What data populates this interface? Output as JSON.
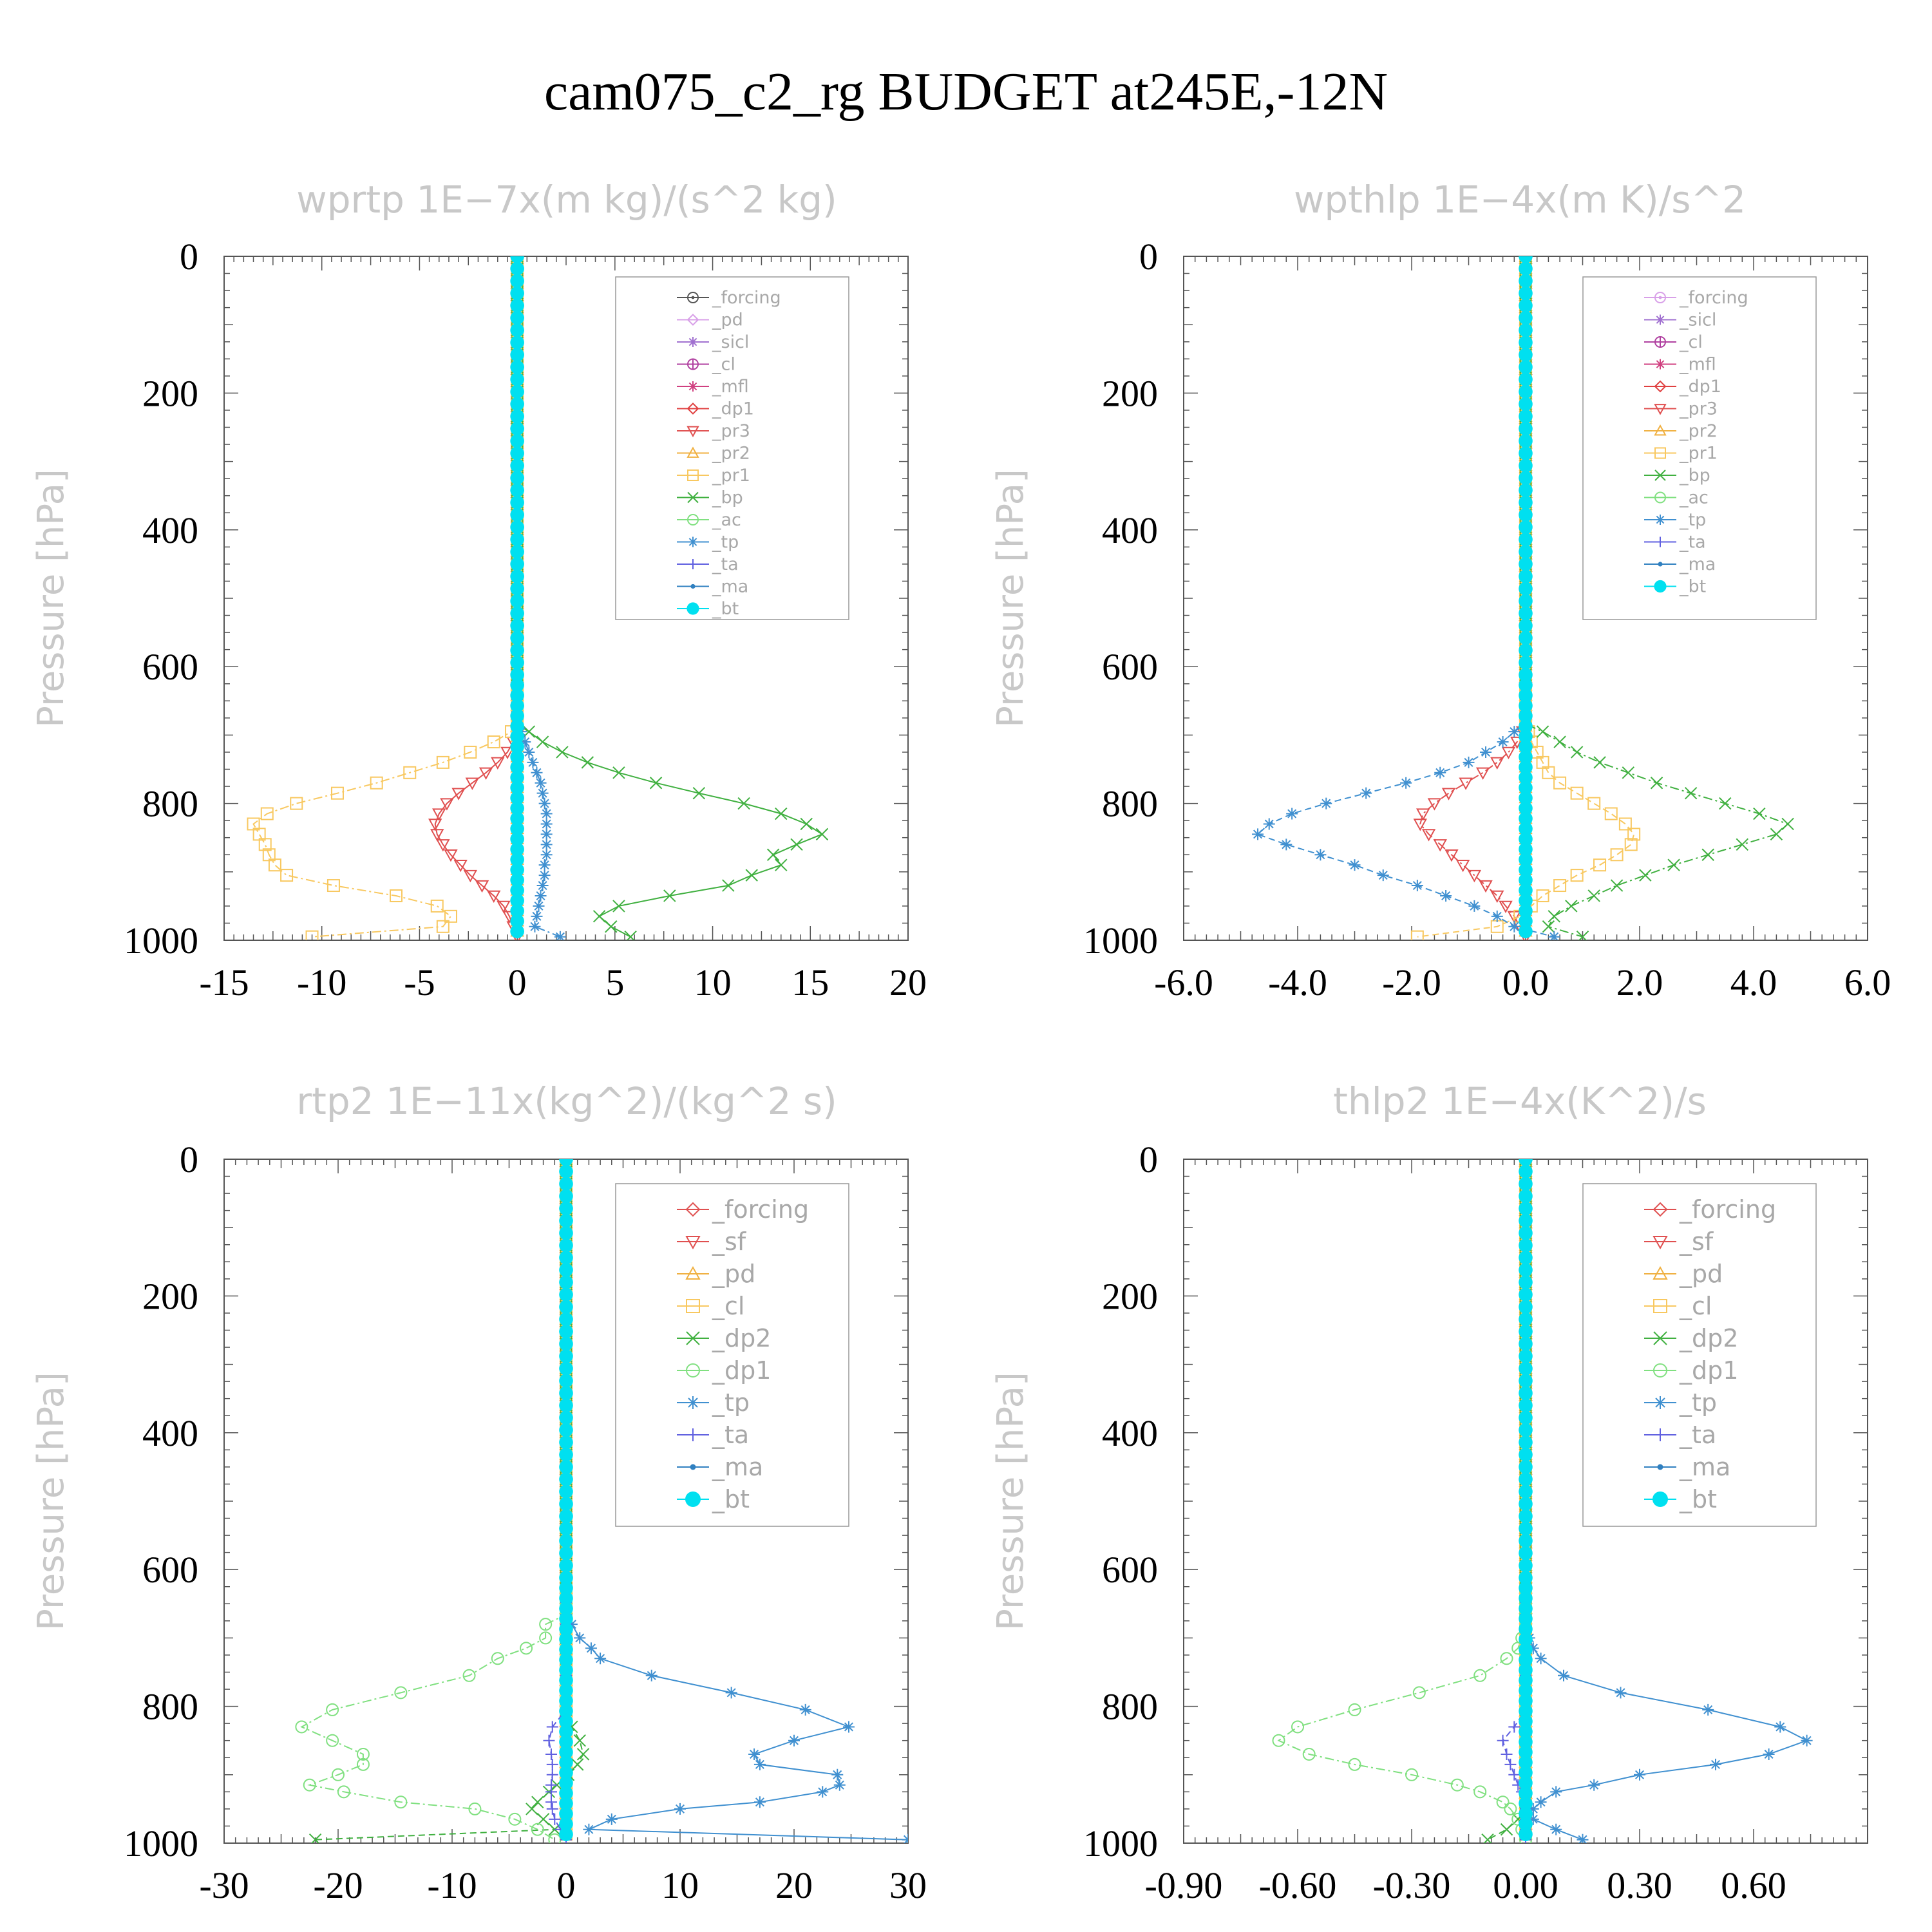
{
  "figure_title": "cam075_c2_rg  BUDGET at245E,-12N",
  "chart_data": [
    {
      "type": "line",
      "title": "wprtp   1E−7x(m kg)/(s^2 kg)",
      "ylabel": "Pressure [hPa]",
      "xlabel": "",
      "xlim": [
        -15,
        20
      ],
      "ylim": [
        1000,
        0
      ],
      "xticks": [
        "-15",
        "-10",
        "-5",
        "0",
        "5",
        "10",
        "15",
        "20"
      ],
      "xtick_values": [
        -15,
        -10,
        -5,
        0,
        5,
        10,
        15,
        20
      ],
      "yticks": [
        "0",
        "200",
        "400",
        "600",
        "800",
        "1000"
      ],
      "grid": false,
      "legend_placement": "top-right",
      "legend_style": "small",
      "pressure": [
        695,
        710,
        725,
        740,
        755,
        770,
        785,
        800,
        815,
        830,
        845,
        860,
        875,
        890,
        905,
        920,
        935,
        950,
        965,
        980,
        995
      ],
      "series": [
        {
          "name": "_forcing",
          "color": "#555555",
          "marker": "circle-dot",
          "values": "zero"
        },
        {
          "name": "_pd",
          "color": "#d8a0e8",
          "marker": "diamond",
          "values": "zero"
        },
        {
          "name": "_sicl",
          "color": "#a070d0",
          "marker": "star",
          "values": "zero"
        },
        {
          "name": "_cl",
          "color": "#b040a0",
          "marker": "plus-circle",
          "values": "zero"
        },
        {
          "name": "_mfl",
          "color": "#d04080",
          "marker": "star",
          "values": "zero"
        },
        {
          "name": "_dp1",
          "color": "#e04040",
          "marker": "diamond",
          "values": "zero"
        },
        {
          "name": "_pr3",
          "color": "#e05050",
          "marker": "triangle-down",
          "values": [
            0,
            -0.2,
            -0.5,
            -1,
            -1.6,
            -2.3,
            -3.0,
            -3.6,
            -4.0,
            -4.2,
            -4.1,
            -3.8,
            -3.4,
            -2.9,
            -2.4,
            -1.8,
            -1.2,
            -0.7,
            -0.4,
            -0.2,
            0
          ]
        },
        {
          "name": "_pr2",
          "color": "#f0b040",
          "marker": "triangle",
          "values": "zero"
        },
        {
          "name": "_pr1",
          "color": "#f8c860",
          "marker": "square",
          "values": [
            -0.3,
            -1.2,
            -2.4,
            -3.8,
            -5.5,
            -7.2,
            -9.2,
            -11.3,
            -12.8,
            -13.5,
            -13.2,
            -12.9,
            -12.7,
            -12.4,
            -11.8,
            -9.4,
            -6.2,
            -4.1,
            -3.4,
            -3.8,
            -10.5
          ]
        },
        {
          "name": "_bp",
          "color": "#40b040",
          "marker": "x",
          "values": [
            0.6,
            1.3,
            2.3,
            3.6,
            5.2,
            7.1,
            9.3,
            11.6,
            13.5,
            14.8,
            15.6,
            14.3,
            13.1,
            13.5,
            12.0,
            10.8,
            7.8,
            5.2,
            4.2,
            4.8,
            5.8
          ]
        },
        {
          "name": "_ac",
          "color": "#80e080",
          "marker": "circle",
          "values": "zero"
        },
        {
          "name": "_tp",
          "color": "#4090d0",
          "marker": "asterisk",
          "values": [
            0.2,
            0.4,
            0.6,
            0.8,
            1.0,
            1.2,
            1.3,
            1.4,
            1.5,
            1.5,
            1.5,
            1.5,
            1.5,
            1.4,
            1.4,
            1.3,
            1.2,
            1.1,
            1.0,
            0.9,
            2.2
          ]
        },
        {
          "name": "_ta",
          "color": "#6060e0",
          "marker": "plus",
          "values": "zero"
        },
        {
          "name": "_ma",
          "color": "#3080c0",
          "marker": "dot",
          "values": "zero"
        },
        {
          "name": "_bt",
          "color": "#00e0f0",
          "marker": "filled-circle",
          "values": "zero"
        }
      ]
    },
    {
      "type": "line",
      "title": "wpthlp   1E−4x(m K)/s^2",
      "ylabel": "Pressure [hPa]",
      "xlabel": "",
      "xlim": [
        -6,
        6
      ],
      "ylim": [
        1000,
        0
      ],
      "xticks": [
        "-6.0",
        "-4.0",
        "-2.0",
        "0.0",
        "2.0",
        "4.0",
        "6.0"
      ],
      "xtick_values": [
        -6,
        -4,
        -2,
        0,
        2,
        4,
        6
      ],
      "yticks": [
        "0",
        "200",
        "400",
        "600",
        "800",
        "1000"
      ],
      "grid": false,
      "legend_placement": "top-right",
      "legend_style": "small",
      "pressure": [
        695,
        710,
        725,
        740,
        755,
        770,
        785,
        800,
        815,
        830,
        845,
        860,
        875,
        890,
        905,
        920,
        935,
        950,
        965,
        980,
        995
      ],
      "series": [
        {
          "name": "_forcing",
          "color": "#d8a0e8",
          "marker": "circle-dot",
          "values": "zero"
        },
        {
          "name": "_sicl",
          "color": "#a070d0",
          "marker": "star",
          "values": "zero"
        },
        {
          "name": "_cl",
          "color": "#b040a0",
          "marker": "plus-circle",
          "values": "zero"
        },
        {
          "name": "_mfl",
          "color": "#d04080",
          "marker": "star",
          "values": "zero"
        },
        {
          "name": "_dp1",
          "color": "#e04040",
          "marker": "diamond",
          "values": "zero"
        },
        {
          "name": "_pr3",
          "color": "#e05050",
          "marker": "triangle-down",
          "values": [
            -0.05,
            -0.15,
            -0.3,
            -0.5,
            -0.75,
            -1.05,
            -1.35,
            -1.6,
            -1.8,
            -1.85,
            -1.7,
            -1.5,
            -1.3,
            -1.1,
            -0.9,
            -0.7,
            -0.5,
            -0.35,
            -0.2,
            -0.1,
            0
          ]
        },
        {
          "name": "_pr2",
          "color": "#f0b040",
          "marker": "triangle",
          "values": "zero"
        },
        {
          "name": "_pr1",
          "color": "#f8c860",
          "marker": "square",
          "values": [
            0.05,
            0.1,
            0.2,
            0.3,
            0.4,
            0.6,
            0.9,
            1.2,
            1.5,
            1.75,
            1.9,
            1.85,
            1.6,
            1.3,
            0.9,
            0.6,
            0.3,
            0.1,
            -0.1,
            -0.5,
            -1.9
          ]
        },
        {
          "name": "_bp",
          "color": "#40b040",
          "marker": "x",
          "values": [
            0.3,
            0.6,
            0.9,
            1.3,
            1.8,
            2.3,
            2.9,
            3.5,
            4.1,
            4.6,
            4.4,
            3.8,
            3.2,
            2.6,
            2.1,
            1.6,
            1.2,
            0.8,
            0.5,
            0.4,
            1.0
          ]
        },
        {
          "name": "_ac",
          "color": "#80e080",
          "marker": "circle",
          "values": "zero"
        },
        {
          "name": "_tp",
          "color": "#4090d0",
          "marker": "asterisk",
          "values": [
            -0.2,
            -0.4,
            -0.7,
            -1.0,
            -1.5,
            -2.1,
            -2.8,
            -3.5,
            -4.1,
            -4.5,
            -4.7,
            -4.2,
            -3.6,
            -3.0,
            -2.5,
            -1.9,
            -1.4,
            -0.9,
            -0.5,
            -0.2,
            0.5
          ]
        },
        {
          "name": "_ta",
          "color": "#6060e0",
          "marker": "plus",
          "values": "zero"
        },
        {
          "name": "_ma",
          "color": "#3080c0",
          "marker": "dot",
          "values": "zero"
        },
        {
          "name": "_bt",
          "color": "#00e0f0",
          "marker": "filled-circle",
          "values": "zero"
        }
      ]
    },
    {
      "type": "line",
      "title": "rtp2   1E−11x(kg^2)/(kg^2 s)",
      "ylabel": "Pressure [hPa]",
      "xlabel": "",
      "xlim": [
        -30,
        30
      ],
      "ylim": [
        1000,
        0
      ],
      "xticks": [
        "-30",
        "-20",
        "-10",
        "0",
        "10",
        "20",
        "30"
      ],
      "xtick_values": [
        -30,
        -20,
        -10,
        0,
        10,
        20,
        30
      ],
      "yticks": [
        "0",
        "200",
        "400",
        "600",
        "800",
        "1000"
      ],
      "grid": false,
      "legend_placement": "top-right",
      "legend_style": "large",
      "pressure": [
        680,
        700,
        715,
        730,
        755,
        780,
        805,
        830,
        850,
        870,
        885,
        900,
        915,
        925,
        940,
        950,
        965,
        980,
        995
      ],
      "series": [
        {
          "name": "_forcing",
          "color": "#e05050",
          "marker": "diamond",
          "values": "zero"
        },
        {
          "name": "_sf",
          "color": "#e05050",
          "marker": "triangle-down",
          "values": "zero"
        },
        {
          "name": "_pd",
          "color": "#f0b040",
          "marker": "triangle",
          "values": "zero"
        },
        {
          "name": "_cl",
          "color": "#f8c860",
          "marker": "square",
          "values": "zero"
        },
        {
          "name": "_dp2",
          "color": "#40b040",
          "marker": "x",
          "values": [
            0,
            0,
            0,
            0,
            0,
            0,
            0,
            0.5,
            1.2,
            1.5,
            1.0,
            0.2,
            -0.8,
            -1.5,
            -2.5,
            -3,
            -2,
            -1,
            -22
          ]
        },
        {
          "name": "_dp1",
          "color": "#80e080",
          "marker": "circle",
          "values": [
            -1.8,
            -1.8,
            -3.5,
            -6,
            -8.5,
            -14.5,
            -20.5,
            -23.2,
            -20.5,
            -17.8,
            -17.8,
            -20,
            -22.5,
            -19.5,
            -14.5,
            -8,
            -4.5,
            -2.5,
            -1
          ]
        },
        {
          "name": "_tp",
          "color": "#4090d0",
          "marker": "asterisk",
          "values": [
            0.5,
            1.2,
            2.2,
            3,
            7.5,
            14.5,
            21,
            24.8,
            20,
            16.5,
            17,
            23.8,
            24,
            22.5,
            17,
            10,
            4,
            2,
            30
          ]
        },
        {
          "name": "_ta",
          "color": "#6060e0",
          "marker": "plus",
          "values": [
            0,
            0,
            0,
            0,
            0,
            0,
            0,
            -1.2,
            -1.5,
            -1.3,
            -1.2,
            -1.2,
            -1.3,
            -1.3,
            -1.3,
            -1.2,
            -1,
            -0.5,
            0
          ]
        },
        {
          "name": "_ma",
          "color": "#3080c0",
          "marker": "dot",
          "values": "zero"
        },
        {
          "name": "_bt",
          "color": "#00e0f0",
          "marker": "filled-circle",
          "values": "zero"
        }
      ]
    },
    {
      "type": "line",
      "title": "thlp2   1E−4x(K^2)/s",
      "ylabel": "Pressure [hPa]",
      "xlabel": "",
      "xlim": [
        -0.9,
        0.9
      ],
      "ylim": [
        1000,
        0
      ],
      "xticks": [
        "-0.90",
        "-0.60",
        "-0.30",
        "0.00",
        "0.30",
        "0.60"
      ],
      "xtick_values": [
        -0.9,
        -0.6,
        -0.3,
        0,
        0.3,
        0.6
      ],
      "yticks": [
        "0",
        "200",
        "400",
        "600",
        "800",
        "1000"
      ],
      "grid": false,
      "legend_placement": "top-right",
      "legend_style": "large",
      "pressure": [
        700,
        715,
        730,
        755,
        780,
        805,
        830,
        850,
        870,
        885,
        900,
        915,
        925,
        940,
        950,
        965,
        980,
        995
      ],
      "series": [
        {
          "name": "_forcing",
          "color": "#e05050",
          "marker": "diamond",
          "values": "zero"
        },
        {
          "name": "_sf",
          "color": "#e05050",
          "marker": "triangle-down",
          "values": "zero"
        },
        {
          "name": "_pd",
          "color": "#f0b040",
          "marker": "triangle",
          "values": "zero"
        },
        {
          "name": "_cl",
          "color": "#f8c860",
          "marker": "square",
          "values": "zero"
        },
        {
          "name": "_dp2",
          "color": "#40b040",
          "marker": "x",
          "values": [
            0,
            0,
            0,
            0,
            0,
            0,
            0,
            0,
            0,
            0,
            0,
            0,
            0,
            0,
            0,
            -0.02,
            -0.05,
            -0.1
          ]
        },
        {
          "name": "_dp1",
          "color": "#80e080",
          "marker": "circle",
          "values": [
            -0.01,
            -0.02,
            -0.05,
            -0.12,
            -0.28,
            -0.45,
            -0.6,
            -0.65,
            -0.57,
            -0.45,
            -0.3,
            -0.18,
            -0.12,
            -0.06,
            -0.04,
            -0.02,
            -0.01,
            0
          ]
        },
        {
          "name": "_tp",
          "color": "#4090d0",
          "marker": "asterisk",
          "values": [
            0.01,
            0.02,
            0.04,
            0.1,
            0.25,
            0.48,
            0.67,
            0.74,
            0.64,
            0.5,
            0.3,
            0.18,
            0.08,
            0.04,
            0.02,
            0.02,
            0.08,
            0.15
          ]
        },
        {
          "name": "_ta",
          "color": "#6060e0",
          "marker": "plus",
          "values": [
            0,
            0,
            0,
            0,
            0,
            0,
            -0.03,
            -0.06,
            -0.05,
            -0.04,
            -0.03,
            -0.02,
            -0.01,
            0,
            0,
            0,
            0,
            0
          ]
        },
        {
          "name": "_ma",
          "color": "#3080c0",
          "marker": "dot",
          "values": "zero"
        },
        {
          "name": "_bt",
          "color": "#00e0f0",
          "marker": "filled-circle",
          "values": "zero"
        }
      ]
    }
  ]
}
